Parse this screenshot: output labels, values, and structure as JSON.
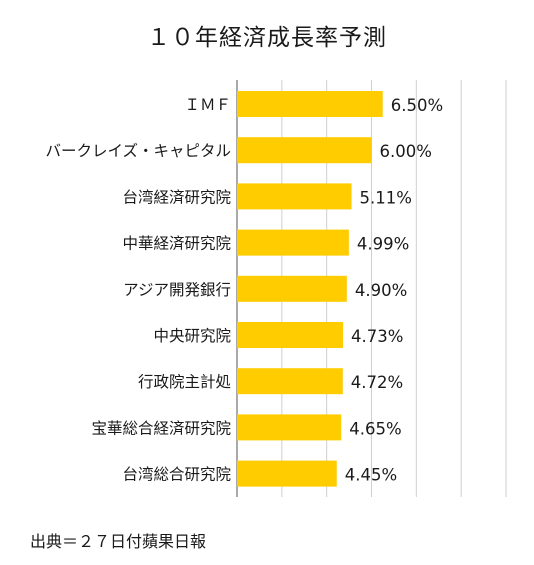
{
  "chart_data": {
    "type": "bar",
    "orientation": "horizontal",
    "title": "１０年経済成長率予測",
    "categories": [
      "ＩＭＦ",
      "バークレイズ・キャピタル",
      "台湾経済研究院",
      "中華経済研究院",
      "アジア開発銀行",
      "中央研究院",
      "行政院主計処",
      "宝華総合経済研究院",
      "台湾総合研究院"
    ],
    "values": [
      6.5,
      6.0,
      5.11,
      4.99,
      4.9,
      4.73,
      4.72,
      4.65,
      4.45
    ],
    "value_labels": [
      "6.50%",
      "6.00%",
      "5.11%",
      "4.99%",
      "4.90%",
      "4.73%",
      "4.72%",
      "4.65%",
      "4.45%"
    ],
    "xlim": [
      0,
      12
    ],
    "grid": true,
    "bar_color": "#ffcc00"
  },
  "source": "出典＝２７日付蘋果日報"
}
